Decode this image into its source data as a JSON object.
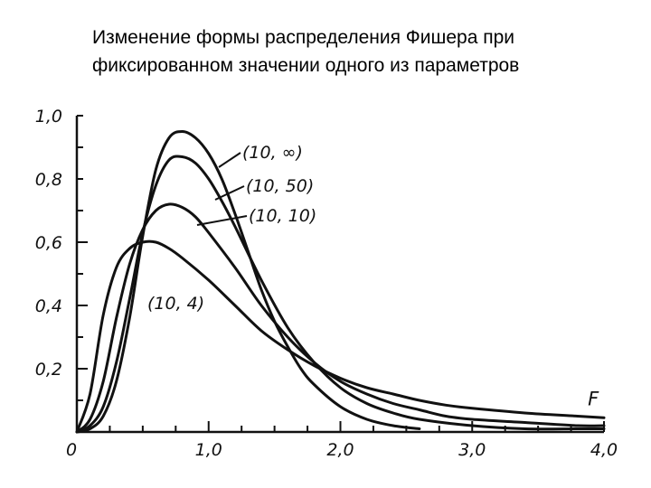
{
  "title_lines": [
    "Изменение формы распределения Фишера при",
    "фиксированном значении одного из параметров"
  ],
  "chart_data": {
    "type": "line",
    "title": "Изменение формы распределения Фишера при фиксированном значении одного из параметров",
    "xlabel": "F",
    "ylabel": "",
    "xlim": [
      0,
      4.0
    ],
    "ylim": [
      0,
      1.0
    ],
    "x_ticks": [
      "0",
      "1,0",
      "2,0",
      "3,0",
      "4,0"
    ],
    "x_tick_values": [
      0,
      1.0,
      2.0,
      3.0,
      4.0
    ],
    "y_ticks": [
      "0,2",
      "0,4",
      "0,6",
      "0,8",
      "1,0"
    ],
    "y_tick_values": [
      0.2,
      0.4,
      0.6,
      0.8,
      1.0
    ],
    "grid": false,
    "line_color": "#111111",
    "series": [
      {
        "name": "(10, ∞)",
        "x": [
          0,
          0.1,
          0.2,
          0.3,
          0.4,
          0.5,
          0.6,
          0.7,
          0.8,
          0.9,
          1.0,
          1.1,
          1.2,
          1.3,
          1.4,
          1.5,
          1.6,
          1.7,
          1.8,
          2.0,
          2.2,
          2.4,
          2.6
        ],
        "y": [
          0.0,
          0.01,
          0.05,
          0.16,
          0.36,
          0.62,
          0.83,
          0.93,
          0.95,
          0.93,
          0.88,
          0.8,
          0.69,
          0.57,
          0.45,
          0.35,
          0.27,
          0.2,
          0.15,
          0.08,
          0.04,
          0.02,
          0.01
        ]
      },
      {
        "name": "(10, 50)",
        "x": [
          0,
          0.1,
          0.2,
          0.3,
          0.4,
          0.5,
          0.6,
          0.7,
          0.8,
          0.9,
          1.0,
          1.1,
          1.2,
          1.4,
          1.6,
          1.8,
          2.0,
          2.2,
          2.4,
          2.6,
          3.0,
          3.4,
          3.8,
          4.0
        ],
        "y": [
          0.0,
          0.02,
          0.08,
          0.22,
          0.42,
          0.63,
          0.78,
          0.86,
          0.87,
          0.85,
          0.8,
          0.73,
          0.65,
          0.48,
          0.33,
          0.22,
          0.14,
          0.09,
          0.06,
          0.04,
          0.02,
          0.01,
          0.01,
          0.01
        ]
      },
      {
        "name": "(10, 10)",
        "x": [
          0,
          0.1,
          0.2,
          0.3,
          0.4,
          0.5,
          0.6,
          0.7,
          0.8,
          0.9,
          1.0,
          1.2,
          1.4,
          1.6,
          1.8,
          2.0,
          2.2,
          2.4,
          2.6,
          2.8,
          3.0,
          3.4,
          3.8,
          4.0
        ],
        "y": [
          0.0,
          0.04,
          0.16,
          0.36,
          0.53,
          0.64,
          0.7,
          0.72,
          0.71,
          0.68,
          0.63,
          0.52,
          0.4,
          0.3,
          0.22,
          0.16,
          0.12,
          0.09,
          0.07,
          0.05,
          0.04,
          0.03,
          0.02,
          0.02
        ]
      },
      {
        "name": "(10, 4)",
        "x": [
          0,
          0.1,
          0.2,
          0.3,
          0.4,
          0.5,
          0.6,
          0.7,
          0.8,
          1.0,
          1.2,
          1.4,
          1.6,
          1.8,
          2.0,
          2.2,
          2.4,
          2.6,
          2.8,
          3.0,
          3.4,
          3.8,
          4.0
        ],
        "y": [
          0.0,
          0.12,
          0.37,
          0.52,
          0.58,
          0.6,
          0.6,
          0.58,
          0.55,
          0.48,
          0.4,
          0.32,
          0.26,
          0.21,
          0.17,
          0.14,
          0.12,
          0.1,
          0.085,
          0.075,
          0.06,
          0.05,
          0.045
        ]
      }
    ]
  }
}
